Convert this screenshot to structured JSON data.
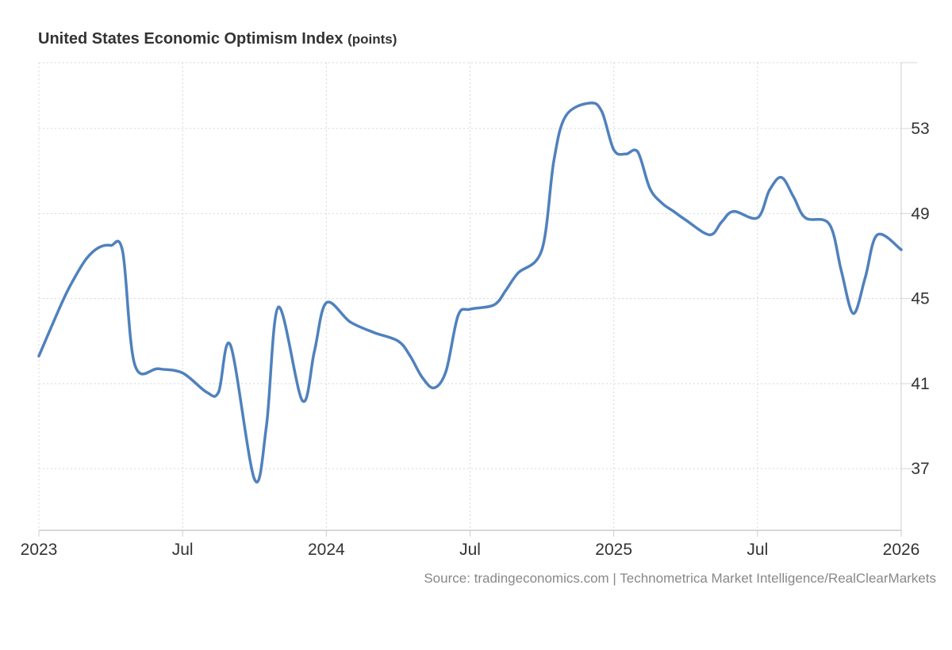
{
  "chart_data": {
    "type": "line",
    "title": "United States Economic Optimism Index",
    "unit_label": "(points)",
    "xlabel": "",
    "ylabel": "",
    "x_tick_labels": [
      "2023",
      "Jul",
      "2024",
      "Jul",
      "2025",
      "Jul",
      "2026"
    ],
    "y_ticks": [
      37,
      41,
      45,
      49,
      53
    ],
    "ylim": [
      34.1,
      56.1
    ],
    "xlim": [
      0,
      36
    ],
    "grid": true,
    "legend": "none",
    "colors": {
      "line": "#4f81bd",
      "grid": "#d7d7d7",
      "axis": "#cccccc",
      "text": "#333333",
      "source": "#888888"
    },
    "series": [
      {
        "name": "Economic Optimism Index",
        "x": [
          0,
          1,
          1.5,
          2,
          2.5,
          3,
          3.5,
          4,
          5,
          6,
          7,
          7.5,
          8,
          9,
          9.5,
          10,
          11,
          11.5,
          12,
          13,
          14,
          15,
          15.5,
          16,
          16.5,
          17,
          17.5,
          18,
          19,
          19.5,
          20,
          21,
          21.5,
          22,
          23,
          23.5,
          24,
          24.5,
          25,
          25.5,
          26,
          26.5,
          27,
          28,
          28.5,
          29,
          30,
          30.5,
          31,
          31.5,
          32,
          33,
          33.5,
          34,
          34.5,
          35,
          36
        ],
        "y": [
          42.3,
          44.9,
          46.0,
          46.9,
          47.4,
          47.5,
          47.2,
          41.9,
          41.7,
          41.5,
          40.6,
          40.6,
          42.8,
          36.5,
          39.0,
          44.6,
          40.2,
          42.5,
          44.8,
          43.9,
          43.4,
          43.0,
          42.3,
          41.3,
          40.8,
          41.6,
          44.2,
          44.5,
          44.7,
          45.4,
          46.2,
          47.3,
          51.5,
          53.6,
          54.2,
          53.8,
          52.0,
          51.8,
          51.9,
          50.2,
          49.5,
          49.1,
          48.7,
          48.0,
          48.6,
          49.1,
          48.8,
          50.1,
          50.7,
          49.8,
          48.8,
          48.5,
          46.3,
          44.3,
          46.0,
          48.0,
          47.3
        ]
      }
    ]
  },
  "source_text": "Source: tradingeconomics.com | Technometrica Market Intelligence/RealClearMarkets"
}
